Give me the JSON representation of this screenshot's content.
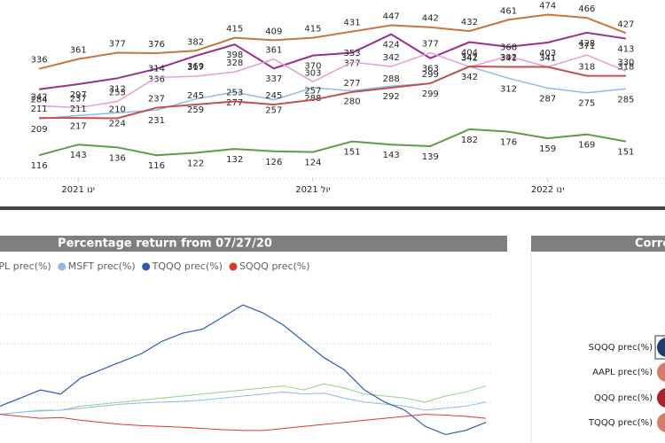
{
  "chart_data": [
    {
      "type": "line",
      "x": [
        "2020-12",
        "2021-01",
        "2021-02",
        "2021-03",
        "2021-04",
        "2021-05",
        "2021-06",
        "2021-07",
        "2021-08",
        "2021-09",
        "2021-10",
        "2021-11",
        "2021-12",
        "2022-01",
        "2022-02",
        "2022-03"
      ],
      "xlim": [
        "2020-11",
        "2022-04"
      ],
      "xticks": [
        {
          "value": "2021-01",
          "label": "ינו 2021"
        },
        {
          "value": "2021-07",
          "label": "יול 2021"
        },
        {
          "value": "2022-01",
          "label": "ינו 2022"
        }
      ],
      "ylim": [
        60,
        500
      ],
      "series": [
        {
          "color": "#c8743a",
          "values": [
            336,
            361,
            377,
            376,
            382,
            415,
            409,
            415,
            431,
            447,
            442,
            432,
            461,
            474,
            466,
            427
          ]
        },
        {
          "color": "#9b2d8e",
          "values": [
            284,
            297,
            312,
            336,
            369,
            398,
            337,
            370,
            377,
            424,
            363,
            404,
            392,
            403,
            428,
            413
          ]
        },
        {
          "color": "#e79bd9",
          "values": [
            242,
            237,
            253,
            314,
            317,
            328,
            361,
            303,
            353,
            342,
            377,
            341,
            368,
            341,
            371,
            330
          ]
        },
        {
          "color": "#8cbbea",
          "values": [
            209,
            217,
            224,
            231,
            259,
            277,
            257,
            288,
            280,
            292,
            299,
            342,
            312,
            287,
            275,
            285
          ]
        },
        {
          "color": "#c0504d",
          "values": [
            211,
            211,
            210,
            237,
            245,
            253,
            245,
            257,
            277,
            288,
            299,
            342,
            341,
            341,
            318,
            318
          ]
        },
        {
          "color": "#5a9e4b",
          "values": [
            116,
            143,
            136,
            116,
            122,
            132,
            126,
            124,
            151,
            143,
            139,
            182,
            176,
            159,
            169,
            151
          ]
        }
      ]
    },
    {
      "type": "line",
      "title": "Percentage return from 07/27/20",
      "ylim": [
        -60,
        290
      ],
      "series": [
        {
          "name": "AAPL prec(%)",
          "color": "#8fd18a",
          "values": [
            0,
            5,
            10,
            10,
            20,
            25,
            30,
            35,
            40,
            45,
            50,
            55,
            60,
            65,
            70,
            60,
            75,
            65,
            50,
            45,
            40,
            30,
            45,
            55,
            70
          ]
        },
        {
          "name": "MSFT prec(%)",
          "color": "#8cbbea",
          "values": [
            0,
            5,
            8,
            10,
            15,
            20,
            25,
            28,
            30,
            32,
            35,
            40,
            45,
            50,
            55,
            50,
            52,
            40,
            30,
            25,
            20,
            10,
            15,
            20,
            30
          ]
        },
        {
          "name": "TQQQ prec(%)",
          "color": "#2e5da8",
          "values": [
            20,
            40,
            60,
            50,
            90,
            110,
            130,
            150,
            180,
            200,
            210,
            240,
            270,
            250,
            220,
            180,
            140,
            110,
            60,
            30,
            10,
            -30,
            -50,
            -40,
            -20
          ]
        },
        {
          "name": "SQQQ prec(%)",
          "color": "#e0342f",
          "values": [
            0,
            -5,
            -10,
            -8,
            -15,
            -20,
            -25,
            -28,
            -30,
            -32,
            -35,
            -38,
            -40,
            -40,
            -35,
            -30,
            -25,
            -20,
            -15,
            -10,
            -5,
            0,
            -2,
            -5,
            -10
          ]
        }
      ]
    }
  ],
  "correlation": {
    "title": "Correlation",
    "labels": [
      "SQQQ prec(%)",
      "AAPL prec(%)",
      "QQQ prec(%)",
      "TQQQ prec(%)"
    ]
  }
}
